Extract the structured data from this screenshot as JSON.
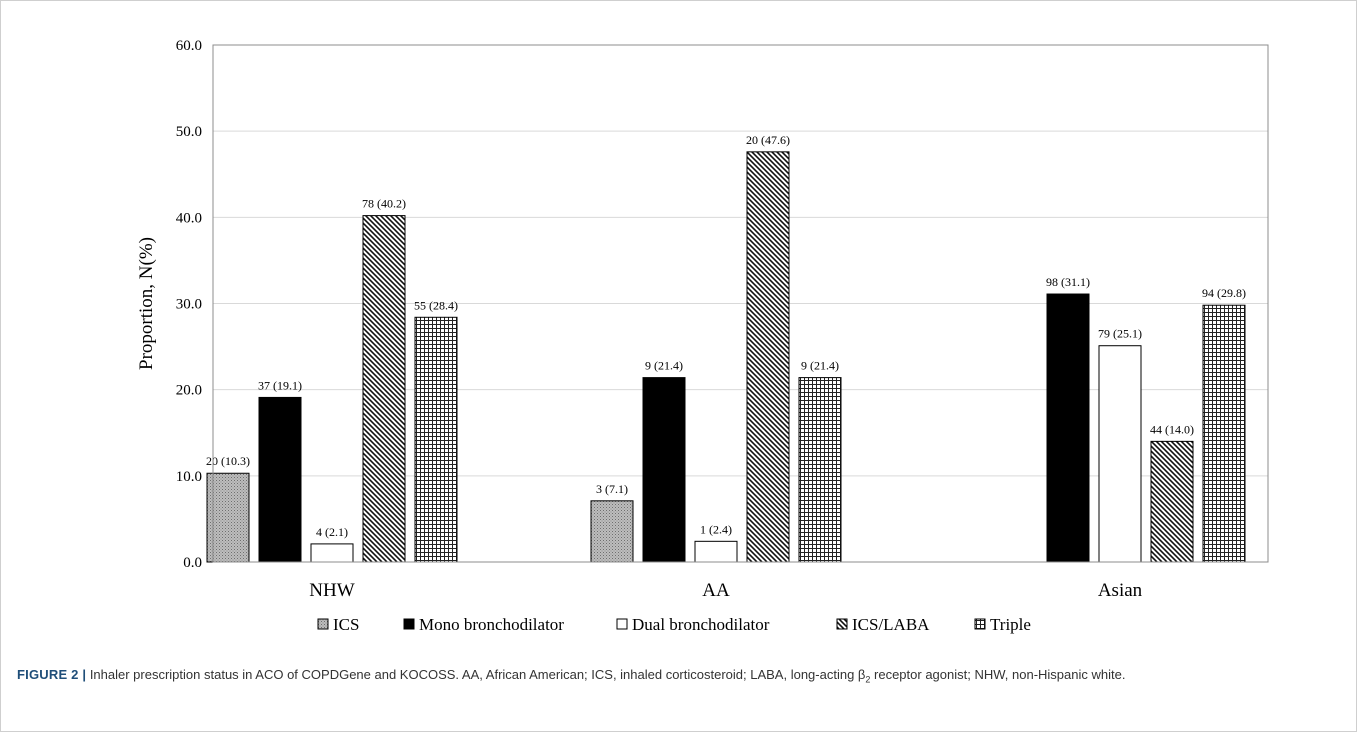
{
  "chart_data": {
    "type": "bar",
    "ylabel": "Proportion, N(%)",
    "ylim": [
      0,
      60
    ],
    "yticks": [
      "0.0",
      "10.0",
      "20.0",
      "30.0",
      "40.0",
      "50.0",
      "60.0"
    ],
    "grid": true,
    "legend_position": "bottom",
    "categories": [
      "NHW",
      "AA",
      "Asian"
    ],
    "series": [
      {
        "name": "ICS",
        "values": [
          10.3,
          7.1,
          null
        ],
        "labels": [
          "20 (10.3)",
          "3 (7.1)",
          ""
        ],
        "pattern": "stipple"
      },
      {
        "name": "Mono bronchodilator",
        "values": [
          19.1,
          21.4,
          31.1
        ],
        "labels": [
          "37 (19.1)",
          "9 (21.4)",
          "98 (31.1)"
        ],
        "pattern": "solid"
      },
      {
        "name": "Dual bronchodilator",
        "values": [
          2.1,
          2.4,
          25.1
        ],
        "labels": [
          "4 (2.1)",
          "1 (2.4)",
          "79 (25.1)"
        ],
        "pattern": "empty"
      },
      {
        "name": "ICS/LABA",
        "values": [
          40.2,
          47.6,
          14.0
        ],
        "labels": [
          "78 (40.2)",
          "20 (47.6)",
          "44 (14.0)"
        ],
        "pattern": "diagonal"
      },
      {
        "name": "Triple",
        "values": [
          28.4,
          21.4,
          29.8
        ],
        "labels": [
          "55 (28.4)",
          "9 (21.4)",
          "94 (29.8)"
        ],
        "pattern": "grid"
      }
    ]
  },
  "caption": {
    "label": "FIGURE 2 |",
    "text_before": " Inhaler prescription status in ACO of COPDGene and KOCOSS. AA, African American; ICS, inhaled corticosteroid; LABA, long-acting β",
    "subscript": "2",
    "text_after": " receptor agonist; NHW, non-Hispanic white."
  }
}
